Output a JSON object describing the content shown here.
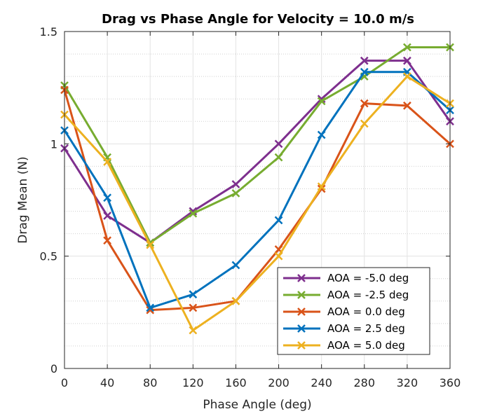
{
  "chart_data": {
    "type": "line",
    "title": "Drag vs Phase Angle for Velocity = 10.0 m/s",
    "xlabel": "Phase Angle (deg)",
    "ylabel": "Drag Mean (N)",
    "x": [
      0,
      40,
      80,
      120,
      160,
      200,
      240,
      280,
      320,
      360
    ],
    "xlim": [
      0,
      360
    ],
    "ylim": [
      0,
      1.5
    ],
    "xticks": [
      "0",
      "40",
      "80",
      "120",
      "160",
      "200",
      "240",
      "280",
      "320",
      "360"
    ],
    "yticks": [
      "0",
      "0.5",
      "1",
      "1.5"
    ],
    "grid": true,
    "marker": "x",
    "legend_position": "bottom-right",
    "series": [
      {
        "name": "AOA = -5.0 deg",
        "color": "#7E2F8E",
        "values": [
          0.98,
          0.68,
          0.56,
          0.7,
          0.82,
          1.0,
          1.2,
          1.37,
          1.37,
          1.1
        ]
      },
      {
        "name": "AOA = -2.5 deg",
        "color": "#77AC30",
        "values": [
          1.26,
          0.94,
          0.56,
          0.69,
          0.78,
          0.94,
          1.19,
          1.3,
          1.43,
          1.43
        ]
      },
      {
        "name": "AOA = 0.0 deg",
        "color": "#D95319",
        "values": [
          1.24,
          0.57,
          0.26,
          0.27,
          0.3,
          0.53,
          0.8,
          1.18,
          1.17,
          1.0
        ]
      },
      {
        "name": "AOA = 2.5 deg",
        "color": "#0072BD",
        "values": [
          1.06,
          0.76,
          0.27,
          0.33,
          0.46,
          0.66,
          1.04,
          1.32,
          1.32,
          1.15
        ]
      },
      {
        "name": "AOA = 5.0 deg",
        "color": "#EDB120",
        "values": [
          1.13,
          0.92,
          0.55,
          0.17,
          0.3,
          0.5,
          0.81,
          1.09,
          1.3,
          1.18
        ]
      }
    ]
  }
}
